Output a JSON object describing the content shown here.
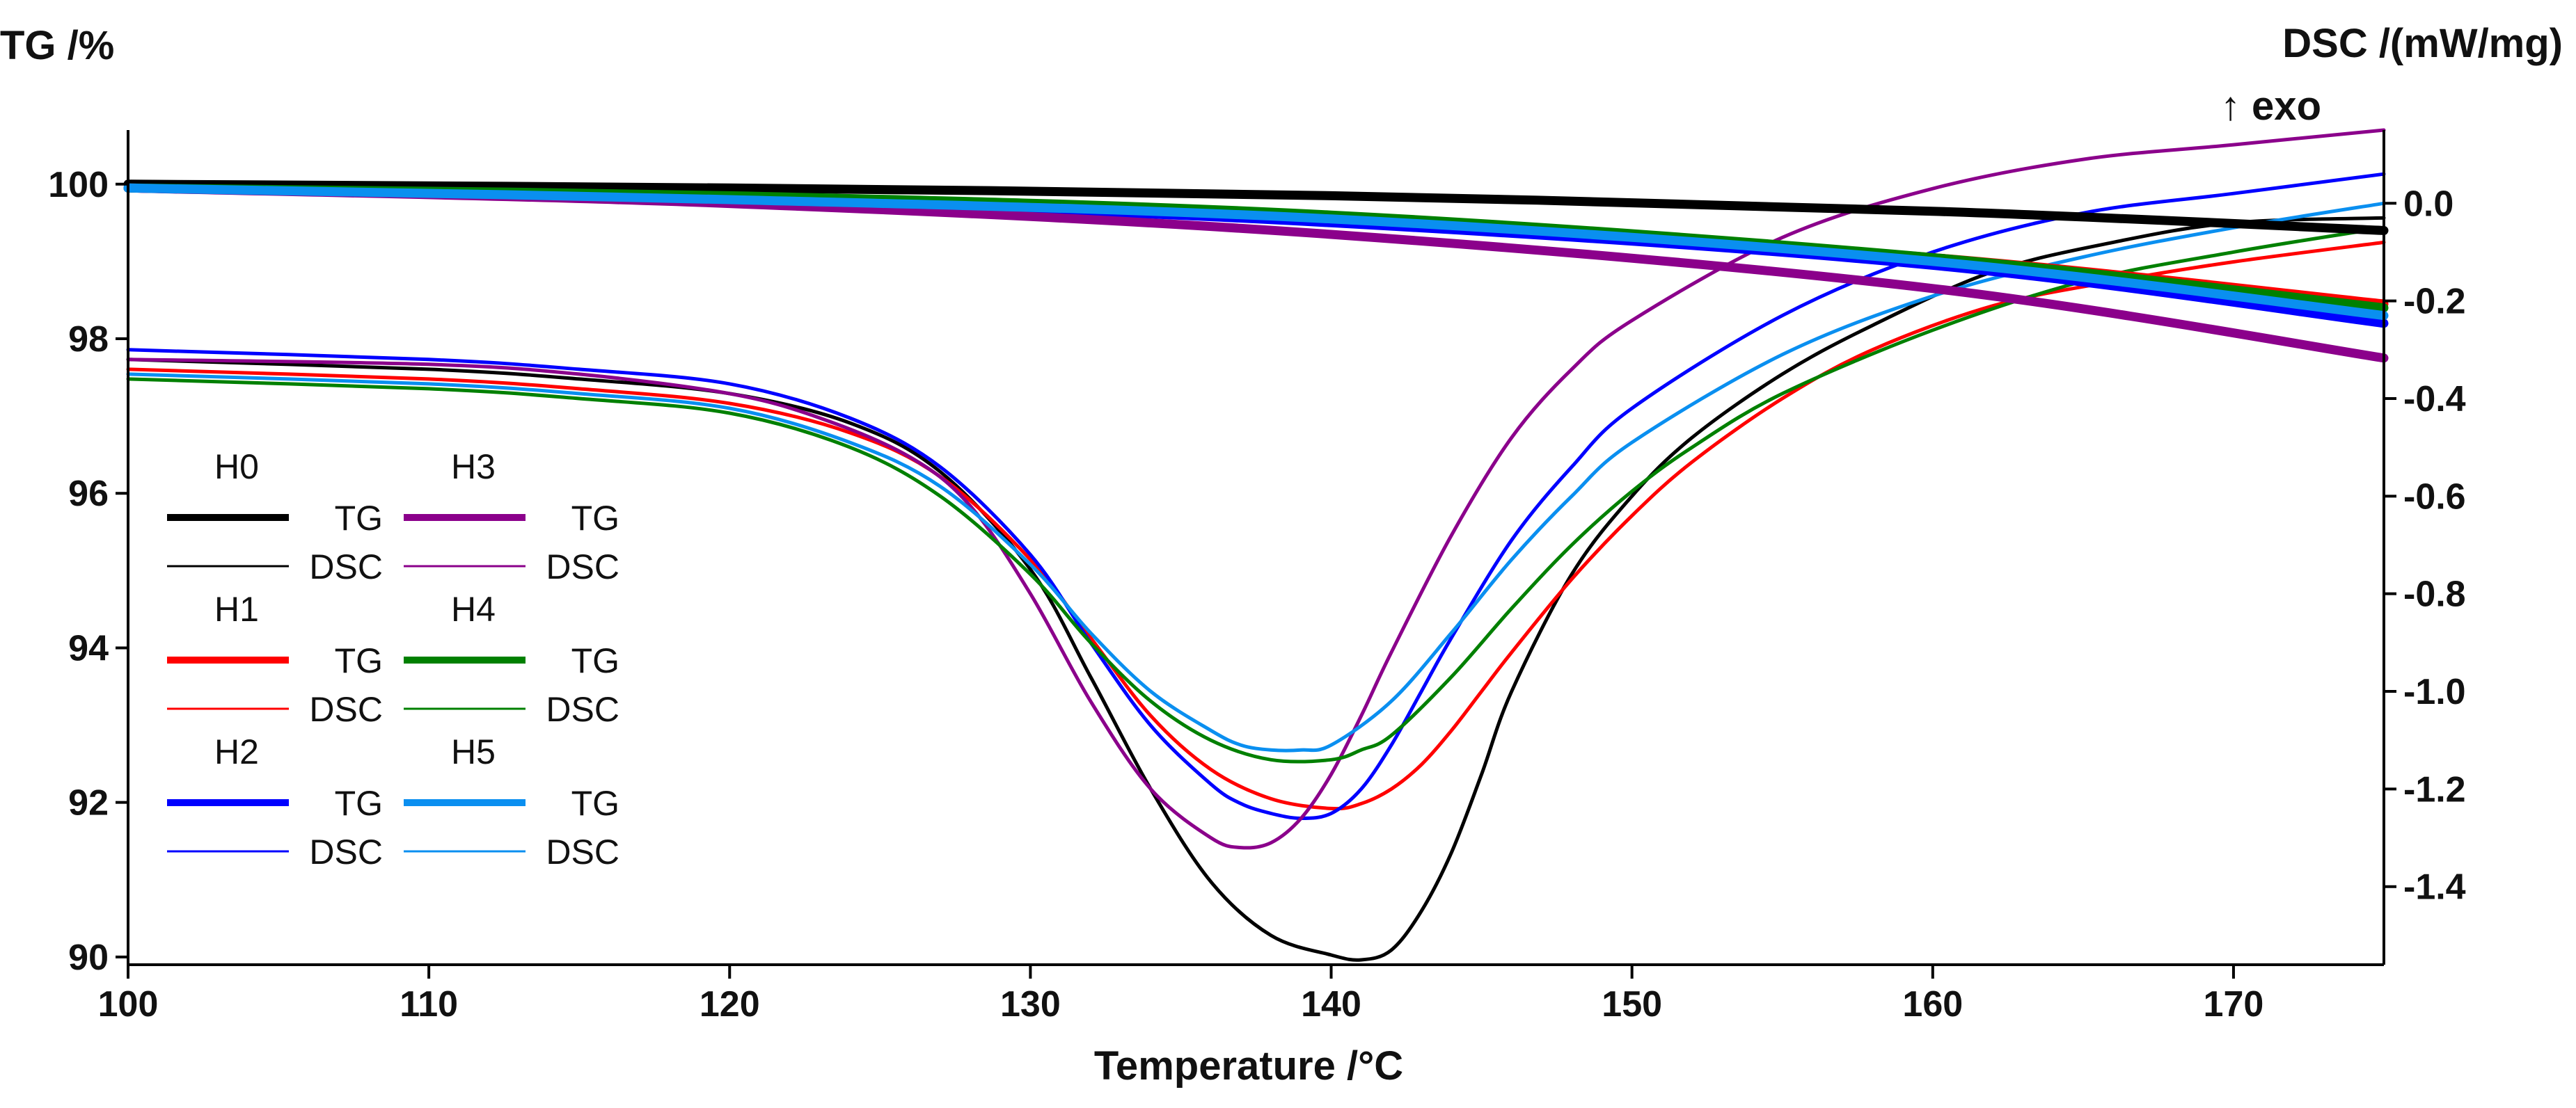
{
  "chart_data": {
    "type": "line",
    "title": "",
    "xlabel": "Temperature /°C",
    "ylabel_left": "TG /%",
    "ylabel_right": "DSC /(mW/mg)",
    "right_annotation": "↑ exo",
    "xlim": [
      100,
      175
    ],
    "ylim_left": [
      89.9,
      100.7
    ],
    "ylim_right": [
      -1.56,
      0.15
    ],
    "xticks": [
      "100",
      "110",
      "120",
      "130",
      "140",
      "150",
      "160",
      "170"
    ],
    "xtick_values": [
      100,
      110,
      120,
      130,
      140,
      150,
      160,
      170
    ],
    "yticks_left": [
      "90",
      "92",
      "94",
      "96",
      "98",
      "100"
    ],
    "ytick_left_values": [
      90,
      92,
      94,
      96,
      98,
      100
    ],
    "yticks_right": [
      "-1.4",
      "-1.2",
      "-1.0",
      "-0.8",
      "-0.6",
      "-0.4",
      "-0.2",
      "0.0"
    ],
    "ytick_right_values": [
      -1.4,
      -1.2,
      -1.0,
      -0.8,
      -0.6,
      -0.4,
      -0.2,
      0.0
    ],
    "tg_type_label": "TG",
    "dsc_type_label": "DSC",
    "series": [
      {
        "name": "H0",
        "color": "#000000",
        "tg": {
          "x": [
            100,
            120,
            140,
            160,
            175
          ],
          "y": [
            100.0,
            99.95,
            99.85,
            99.65,
            99.4
          ]
        },
        "dsc": {
          "x": [
            100,
            110,
            115,
            120,
            124,
            127,
            130,
            132,
            134,
            136,
            138,
            140,
            141,
            142,
            143,
            144,
            145,
            146,
            148,
            150,
            152,
            155,
            158,
            162,
            166,
            170,
            175
          ],
          "y": [
            -0.32,
            -0.34,
            -0.36,
            -0.39,
            -0.45,
            -0.55,
            -0.75,
            -0.97,
            -1.2,
            -1.39,
            -1.5,
            -1.54,
            -1.55,
            -1.53,
            -1.45,
            -1.33,
            -1.17,
            -1.0,
            -0.76,
            -0.6,
            -0.48,
            -0.35,
            -0.25,
            -0.14,
            -0.08,
            -0.04,
            -0.03
          ]
        }
      },
      {
        "name": "H1",
        "color": "#ff0000",
        "tg": {
          "x": [
            100,
            120,
            140,
            160,
            175
          ],
          "y": [
            99.95,
            99.8,
            99.55,
            99.05,
            98.45
          ]
        },
        "dsc": {
          "x": [
            100,
            110,
            115,
            120,
            124,
            127,
            130,
            132,
            134,
            136,
            138,
            140,
            141,
            142,
            143,
            144,
            145,
            146,
            148,
            150,
            152,
            155,
            158,
            162,
            166,
            170,
            175
          ],
          "y": [
            -0.34,
            -0.36,
            -0.38,
            -0.41,
            -0.47,
            -0.56,
            -0.73,
            -0.89,
            -1.05,
            -1.16,
            -1.22,
            -1.24,
            -1.23,
            -1.2,
            -1.15,
            -1.08,
            -1.0,
            -0.92,
            -0.77,
            -0.64,
            -0.53,
            -0.4,
            -0.3,
            -0.21,
            -0.16,
            -0.12,
            -0.08
          ]
        }
      },
      {
        "name": "H2",
        "color": "#0000ff",
        "tg": {
          "x": [
            100,
            120,
            140,
            160,
            175
          ],
          "y": [
            99.95,
            99.8,
            99.5,
            98.95,
            98.2
          ]
        },
        "dsc": {
          "x": [
            100,
            110,
            115,
            120,
            124,
            127,
            130,
            132,
            134,
            136,
            137,
            138,
            139,
            140,
            141,
            142,
            143,
            144,
            146,
            148,
            150,
            155,
            160,
            165,
            170,
            175
          ],
          "y": [
            -0.3,
            -0.32,
            -0.34,
            -0.37,
            -0.44,
            -0.54,
            -0.72,
            -0.9,
            -1.07,
            -1.19,
            -1.23,
            -1.25,
            -1.26,
            -1.25,
            -1.2,
            -1.11,
            -1.0,
            -0.89,
            -0.69,
            -0.54,
            -0.42,
            -0.23,
            -0.1,
            -0.02,
            0.02,
            0.06
          ]
        }
      },
      {
        "name": "H3",
        "color": "#8b008b",
        "tg": {
          "x": [
            100,
            120,
            140,
            160,
            175
          ],
          "y": [
            99.95,
            99.75,
            99.35,
            98.65,
            97.75
          ]
        },
        "dsc": {
          "x": [
            100,
            110,
            115,
            120,
            123,
            126,
            128,
            130,
            132,
            134,
            136,
            137,
            138,
            139,
            140,
            141,
            142,
            144,
            146,
            148,
            150,
            155,
            160,
            165,
            170,
            175
          ],
          "y": [
            -0.32,
            -0.33,
            -0.35,
            -0.39,
            -0.44,
            -0.52,
            -0.62,
            -0.8,
            -1.02,
            -1.2,
            -1.3,
            -1.32,
            -1.31,
            -1.26,
            -1.17,
            -1.05,
            -0.92,
            -0.68,
            -0.48,
            -0.34,
            -0.24,
            -0.07,
            0.03,
            0.09,
            0.12,
            0.15
          ]
        }
      },
      {
        "name": "H4",
        "color": "#008000",
        "tg": {
          "x": [
            100,
            120,
            140,
            160,
            175
          ],
          "y": [
            99.95,
            99.85,
            99.6,
            99.05,
            98.4
          ]
        },
        "dsc": {
          "x": [
            100,
            110,
            115,
            120,
            124,
            127,
            130,
            132,
            134,
            136,
            138,
            140,
            141,
            142,
            144,
            146,
            148,
            150,
            152,
            155,
            160,
            165,
            170,
            175
          ],
          "y": [
            -0.36,
            -0.38,
            -0.4,
            -0.43,
            -0.5,
            -0.6,
            -0.76,
            -0.9,
            -1.02,
            -1.1,
            -1.14,
            -1.14,
            -1.12,
            -1.09,
            -0.97,
            -0.83,
            -0.7,
            -0.59,
            -0.5,
            -0.39,
            -0.26,
            -0.16,
            -0.1,
            -0.05
          ]
        }
      },
      {
        "name": "H5",
        "color": "#0a8ff0",
        "tg": {
          "x": [
            100,
            120,
            140,
            160,
            175
          ],
          "y": [
            99.95,
            99.8,
            99.55,
            99.0,
            98.3
          ]
        },
        "dsc": {
          "x": [
            100,
            110,
            115,
            120,
            124,
            127,
            130,
            132,
            134,
            136,
            137,
            138,
            139,
            140,
            142,
            144,
            146,
            148,
            150,
            155,
            160,
            165,
            170,
            175
          ],
          "y": [
            -0.35,
            -0.37,
            -0.39,
            -0.42,
            -0.49,
            -0.58,
            -0.74,
            -0.88,
            -1.0,
            -1.08,
            -1.11,
            -1.12,
            -1.12,
            -1.11,
            -1.02,
            -0.88,
            -0.73,
            -0.6,
            -0.49,
            -0.31,
            -0.19,
            -0.11,
            -0.05,
            0.0
          ]
        }
      }
    ]
  }
}
